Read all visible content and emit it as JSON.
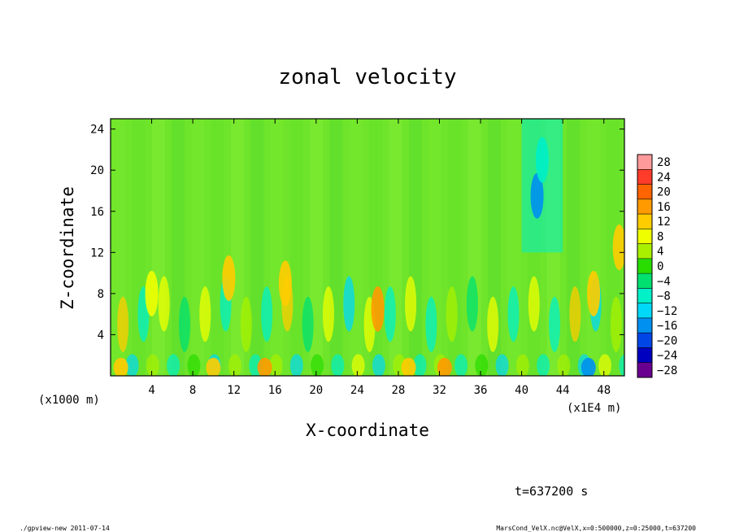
{
  "chart_data": {
    "type": "heatmap",
    "title": "zonal velocity",
    "xlabel": "X-coordinate",
    "ylabel": "Z-coordinate",
    "x_unit_label": "(x1E4 m)",
    "y_unit_label": "(x1000 m)",
    "xlim": [
      0,
      50
    ],
    "ylim": [
      0,
      25
    ],
    "xticks": [
      4,
      8,
      12,
      16,
      20,
      24,
      28,
      32,
      36,
      40,
      44,
      48
    ],
    "yticks": [
      4,
      8,
      12,
      16,
      20,
      24
    ],
    "colorbar": {
      "levels": [
        28,
        24,
        20,
        16,
        12,
        8,
        4,
        0,
        -4,
        -8,
        -12,
        -16,
        -20,
        -24,
        -28
      ],
      "labels": [
        "28",
        "24",
        "20",
        "16",
        "12",
        "8",
        "4",
        "0",
        "−4",
        "−8",
        "−12",
        "−16",
        "−20",
        "−24",
        "−28"
      ],
      "colors": [
        "#ff9a9a",
        "#ff3c2a",
        "#ff6400",
        "#ff9a00",
        "#ffcc00",
        "#f0ff00",
        "#a8f000",
        "#28dc00",
        "#00e070",
        "#00f0c8",
        "#00d8f8",
        "#0090f0",
        "#0046e6",
        "#0000c0",
        "#6a0090"
      ]
    },
    "features": [
      {
        "x": 1.0,
        "z": 0.8,
        "value": 14
      },
      {
        "x": 4.0,
        "z": 8.0,
        "value": 10
      },
      {
        "x": 10.0,
        "z": 0.8,
        "value": 14
      },
      {
        "x": 11.5,
        "z": 9.5,
        "value": 12
      },
      {
        "x": 15.0,
        "z": 0.8,
        "value": 18
      },
      {
        "x": 17.0,
        "z": 9.0,
        "value": 12
      },
      {
        "x": 26.0,
        "z": 6.5,
        "value": 16
      },
      {
        "x": 29.0,
        "z": 0.8,
        "value": 14
      },
      {
        "x": 32.5,
        "z": 0.8,
        "value": 16
      },
      {
        "x": 41.5,
        "z": 17.5,
        "value": -14
      },
      {
        "x": 42.0,
        "z": 21.0,
        "value": -8
      },
      {
        "x": 46.5,
        "z": 0.8,
        "value": -14
      },
      {
        "x": 47.0,
        "z": 8.0,
        "value": 12
      },
      {
        "x": 49.5,
        "z": 12.5,
        "value": 12
      }
    ]
  },
  "footer": {
    "time_label": "t=637200 s",
    "program": "./gpview-new  2011-07-14",
    "source": "MarsCond_VelX.nc@VelX,x=0:500000,z=0:25000,t=637200"
  }
}
